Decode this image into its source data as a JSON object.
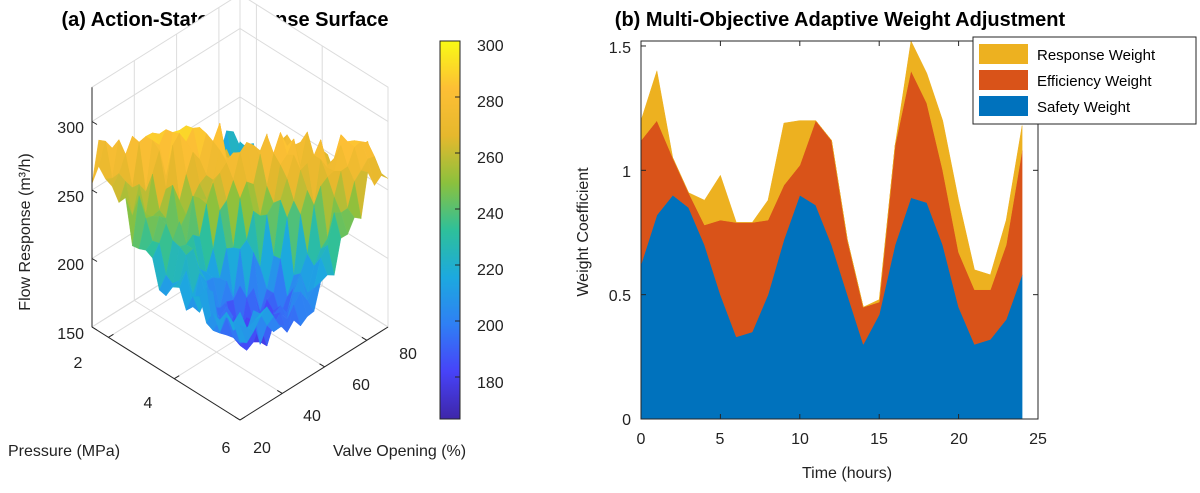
{
  "chart_data": [
    {
      "type": "surface",
      "title": "(a) Action-State Response Surface",
      "xlabel": "Pressure (MPa)",
      "ylabel": "Valve Opening (%)",
      "zlabel": "Flow Response (m³/h)",
      "x_ticks": [
        "2",
        "4",
        "6"
      ],
      "y_ticks": [
        "20",
        "40",
        "60",
        "80"
      ],
      "z_ticks": [
        "150",
        "200",
        "250",
        "300"
      ],
      "xlim": [
        1.5,
        6
      ],
      "ylim": [
        20,
        90
      ],
      "zlim": [
        150,
        325
      ],
      "colorbar": {
        "ticks": [
          "180",
          "200",
          "220",
          "240",
          "260",
          "280",
          "300"
        ],
        "range": [
          165,
          300
        ],
        "colormap": [
          "#3e26a8",
          "#4743f8",
          "#2f7ff4",
          "#1ca9df",
          "#2ec09a",
          "#8cc13d",
          "#e6b82d",
          "#fdbf35",
          "#f9fb15"
        ]
      },
      "surface_grid": 22,
      "peak_value": 300,
      "valley_value": 165
    },
    {
      "type": "area",
      "stacked": true,
      "title": "(b) Multi-Objective Adaptive Weight Adjustment",
      "xlabel": "Time (hours)",
      "ylabel": "Weight Coefficient",
      "x_ticks": [
        "0",
        "5",
        "10",
        "15",
        "20",
        "25"
      ],
      "y_ticks": [
        "0",
        "0.5",
        "1",
        "1.5"
      ],
      "xlim": [
        0,
        25
      ],
      "ylim": [
        0,
        1.52
      ],
      "x": [
        0,
        1,
        2,
        3,
        4,
        5,
        6,
        7,
        8,
        9,
        10,
        11,
        12,
        13,
        14,
        15,
        16,
        17,
        18,
        19,
        20,
        21,
        22,
        23,
        24
      ],
      "series": [
        {
          "name": "Safety Weight",
          "color": "#0072bd",
          "values": [
            0.62,
            0.82,
            0.9,
            0.85,
            0.7,
            0.5,
            0.33,
            0.35,
            0.5,
            0.72,
            0.9,
            0.86,
            0.7,
            0.5,
            0.3,
            0.42,
            0.7,
            0.89,
            0.87,
            0.7,
            0.45,
            0.3,
            0.32,
            0.4,
            0.58
          ]
        },
        {
          "name": "Efficiency Weight",
          "color": "#d95319",
          "values": [
            0.5,
            0.38,
            0.15,
            0.06,
            0.08,
            0.3,
            0.46,
            0.44,
            0.3,
            0.22,
            0.12,
            0.34,
            0.42,
            0.22,
            0.15,
            0.05,
            0.4,
            0.51,
            0.4,
            0.3,
            0.22,
            0.22,
            0.2,
            0.3,
            0.5
          ]
        },
        {
          "name": "Response Weight",
          "color": "#edb120",
          "values": [
            0.08,
            0.2,
            0.0,
            0.0,
            0.1,
            0.18,
            0.0,
            0.0,
            0.08,
            0.25,
            0.18,
            0.0,
            0.0,
            0.0,
            0.0,
            0.01,
            0.0,
            0.12,
            0.12,
            0.2,
            0.21,
            0.08,
            0.06,
            0.1,
            0.1
          ]
        }
      ],
      "legend": [
        "Response Weight",
        "Efficiency Weight",
        "Safety Weight"
      ],
      "legend_position": "top-right"
    }
  ]
}
